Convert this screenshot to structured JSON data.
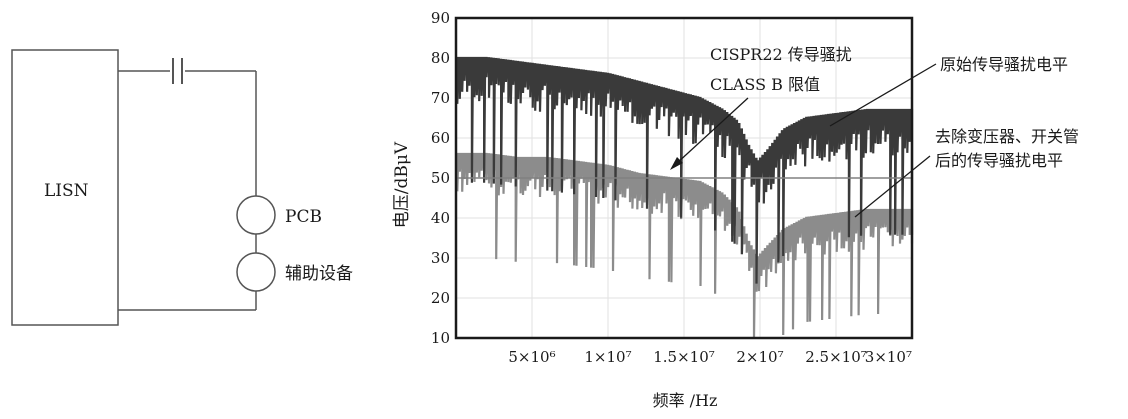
{
  "circuit": {
    "lisn_label": "LISN",
    "pcb_label": "PCB",
    "aux_label": "辅助设备"
  },
  "chart_data": {
    "type": "line",
    "title": "",
    "xlabel": "频率 /Hz",
    "ylabel": "电压/dBμV",
    "xlim": [
      0,
      30000000
    ],
    "ylim": [
      10,
      90
    ],
    "y_ticks": [
      10,
      20,
      30,
      40,
      50,
      60,
      70,
      80,
      90
    ],
    "x_ticks": [
      {
        "value": 5000000,
        "label": "5×10⁶"
      },
      {
        "value": 10000000,
        "label": "1×10⁷"
      },
      {
        "value": 15000000,
        "label": "1.5×10⁷"
      },
      {
        "value": 20000000,
        "label": "2×10⁷"
      },
      {
        "value": 25000000,
        "label": "2.5×10⁷"
      },
      {
        "value": 30000000,
        "label": "3×10⁷"
      }
    ],
    "grid": true,
    "limit_line": {
      "name": "CISPR22 传导骚扰 CLASS B 限值",
      "y": 50,
      "color": "#808080"
    },
    "series": [
      {
        "name": "原始传导骚扰电平",
        "color": "#3a3a3a",
        "envelope_x": [
          0,
          2000000,
          4000000,
          6000000,
          8000000,
          10000000,
          12000000,
          14000000,
          16000000,
          17500000,
          18500000,
          19200000,
          19800000,
          20500000,
          21500000,
          23000000,
          25000000,
          27000000,
          29000000,
          30000000
        ],
        "envelope_y": [
          80,
          80,
          79,
          78,
          77,
          76,
          74,
          72,
          70,
          67,
          64,
          58,
          54,
          57,
          62,
          65,
          66,
          67,
          67,
          67
        ],
        "dip_depth": 12
      },
      {
        "name": "去除变压器、开关管后的传导骚扰电平",
        "color": "#8c8c8c",
        "envelope_x": [
          0,
          2000000,
          4000000,
          6000000,
          8000000,
          10000000,
          12000000,
          14000000,
          16000000,
          17500000,
          18500000,
          19200000,
          19800000,
          20500000,
          21500000,
          23000000,
          25000000,
          27000000,
          29000000,
          30000000
        ],
        "envelope_y": [
          56,
          56,
          55,
          55,
          54,
          53,
          51,
          50,
          49,
          46,
          42,
          34,
          30,
          33,
          37,
          40,
          41,
          42,
          42,
          42
        ],
        "dip_depth": 10
      }
    ],
    "annotations": [
      {
        "name": "limit",
        "lines": [
          "CISPR22 传导骚扰",
          "CLASS B 限值"
        ]
      },
      {
        "name": "original",
        "lines": [
          "原始传导骚扰电平"
        ]
      },
      {
        "name": "reduced",
        "lines": [
          "去除变压器、开关管",
          "后的传导骚扰电平"
        ]
      }
    ]
  }
}
